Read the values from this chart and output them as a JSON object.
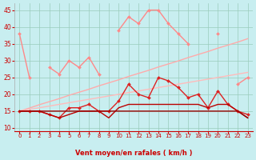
{
  "x": [
    0,
    1,
    2,
    3,
    4,
    5,
    6,
    7,
    8,
    9,
    10,
    11,
    12,
    13,
    14,
    15,
    16,
    17,
    18,
    19,
    20,
    21,
    22,
    23
  ],
  "series": [
    {
      "name": "rafales_peak",
      "y": [
        38,
        25,
        null,
        28,
        26,
        30,
        28,
        31,
        26,
        null,
        39,
        43,
        41,
        45,
        45,
        41,
        38,
        35,
        null,
        null,
        38,
        null,
        23,
        25
      ],
      "color": "#ff8888",
      "lw": 1.0,
      "marker": "D",
      "ms": 2.0
    },
    {
      "name": "trend_linear_upper",
      "y": [
        15,
        15.9,
        16.9,
        17.8,
        18.7,
        19.7,
        20.6,
        21.5,
        22.5,
        23.4,
        24.3,
        25.3,
        26.2,
        27.1,
        28.1,
        29.0,
        29.9,
        30.9,
        31.8,
        32.7,
        33.7,
        34.6,
        35.5,
        36.5
      ],
      "color": "#ffaaaa",
      "lw": 1.0,
      "marker": null,
      "ms": 0
    },
    {
      "name": "trend_linear_mid",
      "y": [
        15,
        15.5,
        16.0,
        16.5,
        17.0,
        17.5,
        18.0,
        18.5,
        19.0,
        19.5,
        20.0,
        20.5,
        21.0,
        21.5,
        22.0,
        22.5,
        23.0,
        23.5,
        24.0,
        24.5,
        25.0,
        25.5,
        26.0,
        26.5
      ],
      "color": "#ffbbbb",
      "lw": 1.0,
      "marker": null,
      "ms": 0
    },
    {
      "name": "vent_moyen_marked",
      "y": [
        15,
        15,
        15,
        14,
        13,
        16,
        16,
        17,
        15,
        15,
        18,
        23,
        20,
        19,
        25,
        24,
        22,
        19,
        20,
        16,
        21,
        17,
        15,
        14
      ],
      "color": "#dd2222",
      "lw": 1.0,
      "marker": "D",
      "ms": 2.0
    },
    {
      "name": "vent_moyen_smooth",
      "y": [
        15,
        15,
        15,
        14,
        13,
        14,
        15,
        15,
        15,
        13,
        16,
        17,
        17,
        17,
        17,
        17,
        17,
        17,
        17,
        16,
        17,
        17,
        15,
        13
      ],
      "color": "#bb0000",
      "lw": 1.0,
      "marker": null,
      "ms": 0
    },
    {
      "name": "vent_flat",
      "y": [
        15,
        15,
        15,
        15,
        15,
        15,
        15,
        15,
        15,
        15,
        15,
        15,
        15,
        15,
        15,
        15,
        15,
        15,
        15,
        15,
        15,
        15,
        15,
        13
      ],
      "color": "#990000",
      "lw": 1.0,
      "marker": null,
      "ms": 0
    }
  ],
  "xlabel": "Vent moyen/en rafales ( km/h )",
  "xlim": [
    -0.5,
    23.5
  ],
  "ylim": [
    9,
    47
  ],
  "yticks": [
    10,
    15,
    20,
    25,
    30,
    35,
    40,
    45
  ],
  "xticks": [
    0,
    1,
    2,
    3,
    4,
    5,
    6,
    7,
    8,
    9,
    10,
    11,
    12,
    13,
    14,
    15,
    16,
    17,
    18,
    19,
    20,
    21,
    22,
    23
  ],
  "bg_color": "#c8eef0",
  "grid_color": "#99ccbb",
  "tick_color": "#cc0000",
  "label_color": "#cc0000"
}
